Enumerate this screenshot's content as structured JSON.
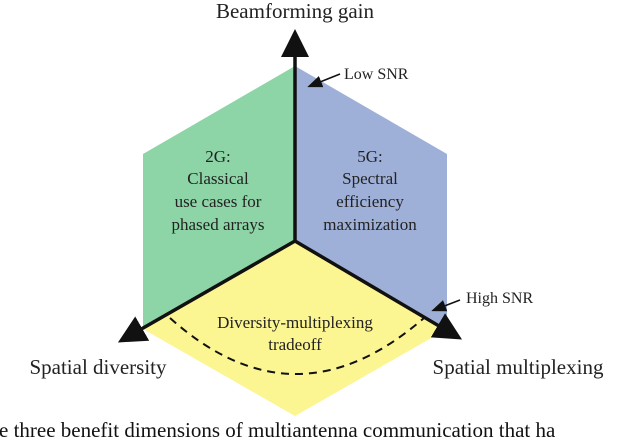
{
  "axes": {
    "top": "Beamforming gain",
    "left": "Spatial diversity",
    "right": "Spatial multiplexing"
  },
  "regions": {
    "green": {
      "lines": [
        "2G:",
        "Classical",
        "use cases for",
        "phased arrays"
      ],
      "color": "#8dd5a6"
    },
    "blue": {
      "lines": [
        "5G:",
        "Spectral",
        "efficiency",
        "maximization"
      ],
      "color": "#9fb0d8"
    },
    "yellow": {
      "lines": [
        "Diversity-multiplexing",
        "tradeoff"
      ],
      "color": "#fbf592"
    }
  },
  "annotations": {
    "low": "Low SNR",
    "high": "High SNR"
  },
  "caption": "re three benefit dimensions of multiantenna communication that ha"
}
